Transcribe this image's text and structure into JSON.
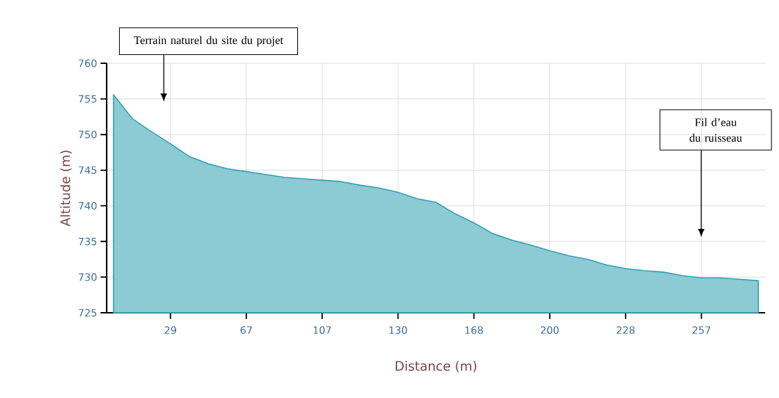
{
  "chart_data": {
    "type": "area",
    "xlabel": "Distance (m)",
    "ylabel": "Altitude (m)",
    "categories": [
      null,
      null,
      null,
      "29",
      null,
      null,
      null,
      "67",
      null,
      null,
      null,
      "107",
      null,
      null,
      null,
      "130",
      null,
      null,
      null,
      "168",
      null,
      null,
      null,
      "200",
      null,
      null,
      null,
      "228",
      null,
      null,
      null,
      "257",
      null,
      null,
      null
    ],
    "series": [
      {
        "color": "#2e9fb0",
        "values": [
          755.6,
          752.2,
          750.4,
          748.7,
          746.9,
          745.9,
          745.2,
          744.8,
          744.4,
          744.0,
          743.8,
          743.6,
          743.4,
          742.9,
          742.5,
          741.9,
          741.0,
          740.5,
          738.9,
          737.6,
          736.1,
          735.2,
          734.5,
          733.7,
          733.0,
          732.5,
          731.7,
          731.2,
          730.9,
          730.7,
          730.2,
          729.9,
          729.9,
          729.7,
          729.5
        ]
      }
    ],
    "ylim": [
      725,
      760
    ],
    "yticks": [
      725,
      730,
      735,
      740,
      745,
      750,
      755,
      760
    ],
    "grid": true,
    "annotations": [
      "Terrain naturel du site du projet",
      "Fil d’eau du ruisseau"
    ]
  }
}
